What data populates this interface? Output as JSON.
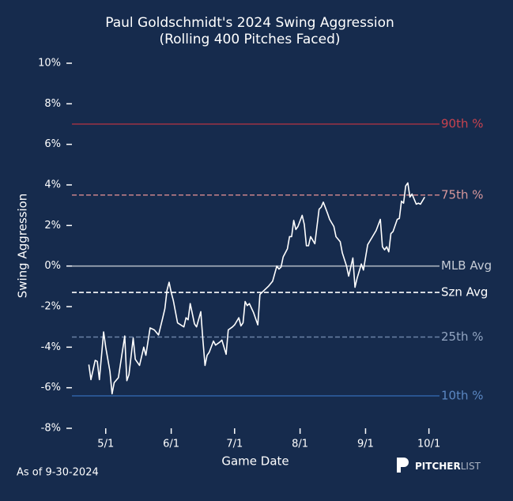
{
  "chart_data": {
    "type": "line",
    "title": "Paul Goldschmidt's 2024 Swing Aggression",
    "subtitle": "(Rolling 400 Pitches Faced)",
    "x_label": "Game Date",
    "y_label": "Swing Aggression",
    "footnote": "As of 9-30-2024",
    "logo": {
      "bold": "PITCHER",
      "light": "LIST"
    },
    "color": "#ffffff",
    "x": [
      "4/23",
      "4/24",
      "4/26",
      "4/27",
      "4/28",
      "4/30",
      "5/1",
      "5/3",
      "5/4",
      "5/5",
      "5/7",
      "5/10",
      "5/11",
      "5/12",
      "5/14",
      "5/15",
      "5/17",
      "5/19",
      "5/20",
      "5/22",
      "5/24",
      "5/26",
      "5/28",
      "5/29",
      "5/30",
      "5/31",
      "6/1",
      "6/2",
      "6/4",
      "6/7",
      "6/8",
      "6/9",
      "6/10",
      "6/12",
      "6/13",
      "6/15",
      "6/16",
      "6/17",
      "6/18",
      "6/19",
      "6/21",
      "6/22",
      "6/24",
      "6/25",
      "6/27",
      "6/28",
      "6/30",
      "7/1",
      "7/3",
      "7/4",
      "7/5",
      "7/6",
      "7/7",
      "7/8",
      "7/10",
      "7/12",
      "7/13",
      "7/15",
      "7/17",
      "7/19",
      "7/21",
      "7/22",
      "7/23",
      "7/24",
      "7/26",
      "7/27",
      "7/28",
      "7/29",
      "7/30",
      "7/31",
      "8/2",
      "8/3",
      "8/4",
      "8/5",
      "8/6",
      "8/8",
      "8/10",
      "8/11",
      "8/12",
      "8/14",
      "8/15",
      "8/17",
      "8/18",
      "8/20",
      "8/21",
      "8/23",
      "8/24",
      "8/26",
      "8/27",
      "8/28",
      "8/30",
      "8/31",
      "9/2",
      "9/4",
      "9/6",
      "9/8",
      "9/9",
      "9/10",
      "9/11",
      "9/12",
      "9/13",
      "9/14",
      "9/16",
      "9/17",
      "9/18",
      "9/19",
      "9/20",
      "9/21",
      "9/22",
      "9/23",
      "9/25",
      "9/26",
      "9/27",
      "9/29"
    ],
    "values": [
      -4.86,
      -5.6,
      -4.65,
      -4.7,
      -5.6,
      -3.25,
      -4.0,
      -5.2,
      -6.3,
      -5.75,
      -5.5,
      -3.45,
      -5.65,
      -5.35,
      -3.55,
      -4.6,
      -4.9,
      -4.0,
      -4.4,
      -3.05,
      -3.15,
      -3.4,
      -2.55,
      -2.1,
      -1.2,
      -0.8,
      -1.3,
      -1.7,
      -2.8,
      -3.0,
      -2.55,
      -2.65,
      -1.85,
      -2.85,
      -3.0,
      -2.25,
      -3.65,
      -4.9,
      -4.4,
      -4.25,
      -3.7,
      -3.9,
      -3.75,
      -3.65,
      -4.35,
      -3.15,
      -3.0,
      -2.9,
      -2.55,
      -2.95,
      -2.8,
      -1.75,
      -1.95,
      -1.85,
      -2.3,
      -2.9,
      -1.4,
      -1.2,
      -1.0,
      -0.75,
      0,
      -0.15,
      -0.05,
      0.45,
      0.85,
      1.45,
      1.45,
      2.25,
      1.8,
      1.95,
      2.5,
      2.05,
      1.0,
      1.0,
      1.45,
      1.1,
      2.8,
      2.9,
      3.15,
      2.6,
      2.3,
      1.95,
      1.45,
      1.2,
      0.65,
      0,
      -0.5,
      0.4,
      -1.05,
      -0.6,
      0.1,
      -0.2,
      1.05,
      1.4,
      1.75,
      2.3,
      0.95,
      0.8,
      0.95,
      0.7,
      1.6,
      1.7,
      2.3,
      2.35,
      3.2,
      3.1,
      3.95,
      4.1,
      3.4,
      3.55,
      3.05,
      3.1,
      3.05,
      3.4
    ],
    "xlim": [
      "4/15",
      "10/6"
    ],
    "xticks": [
      "5/1",
      "6/1",
      "7/1",
      "8/1",
      "9/1",
      "10/1"
    ],
    "ylim": [
      -8,
      10
    ],
    "yticks": [
      {
        "value": -8,
        "label": "-8%"
      },
      {
        "value": -6,
        "label": "-6%"
      },
      {
        "value": -4,
        "label": "-4%"
      },
      {
        "value": -2,
        "label": "-2%"
      },
      {
        "value": 0,
        "label": "0%"
      },
      {
        "value": 2,
        "label": "2%"
      },
      {
        "value": 4,
        "label": "4%"
      },
      {
        "value": 6,
        "label": "6%"
      },
      {
        "value": 8,
        "label": "8%"
      },
      {
        "value": 10,
        "label": "10%"
      }
    ],
    "reference_lines": [
      {
        "label": "90th %",
        "value": 7.0,
        "color": "#9c3345",
        "label_color": "#c8424e",
        "style": "solid"
      },
      {
        "label": "75th %",
        "value": 3.5,
        "color": "#b97b85",
        "label_color": "#d7979b",
        "style": "dashed"
      },
      {
        "label": "MLB Avg",
        "value": 0,
        "color": "#a9b1be",
        "label_color": "#c6ccd6",
        "style": "solid"
      },
      {
        "label": "Szn Avg",
        "value": -1.3,
        "color": "#ffffff",
        "label_color": "#ffffff",
        "style": "dashed"
      },
      {
        "label": "25th %",
        "value": -3.5,
        "color": "#6a82a6",
        "label_color": "#93a6c2",
        "style": "dashed"
      },
      {
        "label": "10th %",
        "value": -6.4,
        "color": "#2e5e9f",
        "label_color": "#5b87c2",
        "style": "solid"
      }
    ]
  }
}
